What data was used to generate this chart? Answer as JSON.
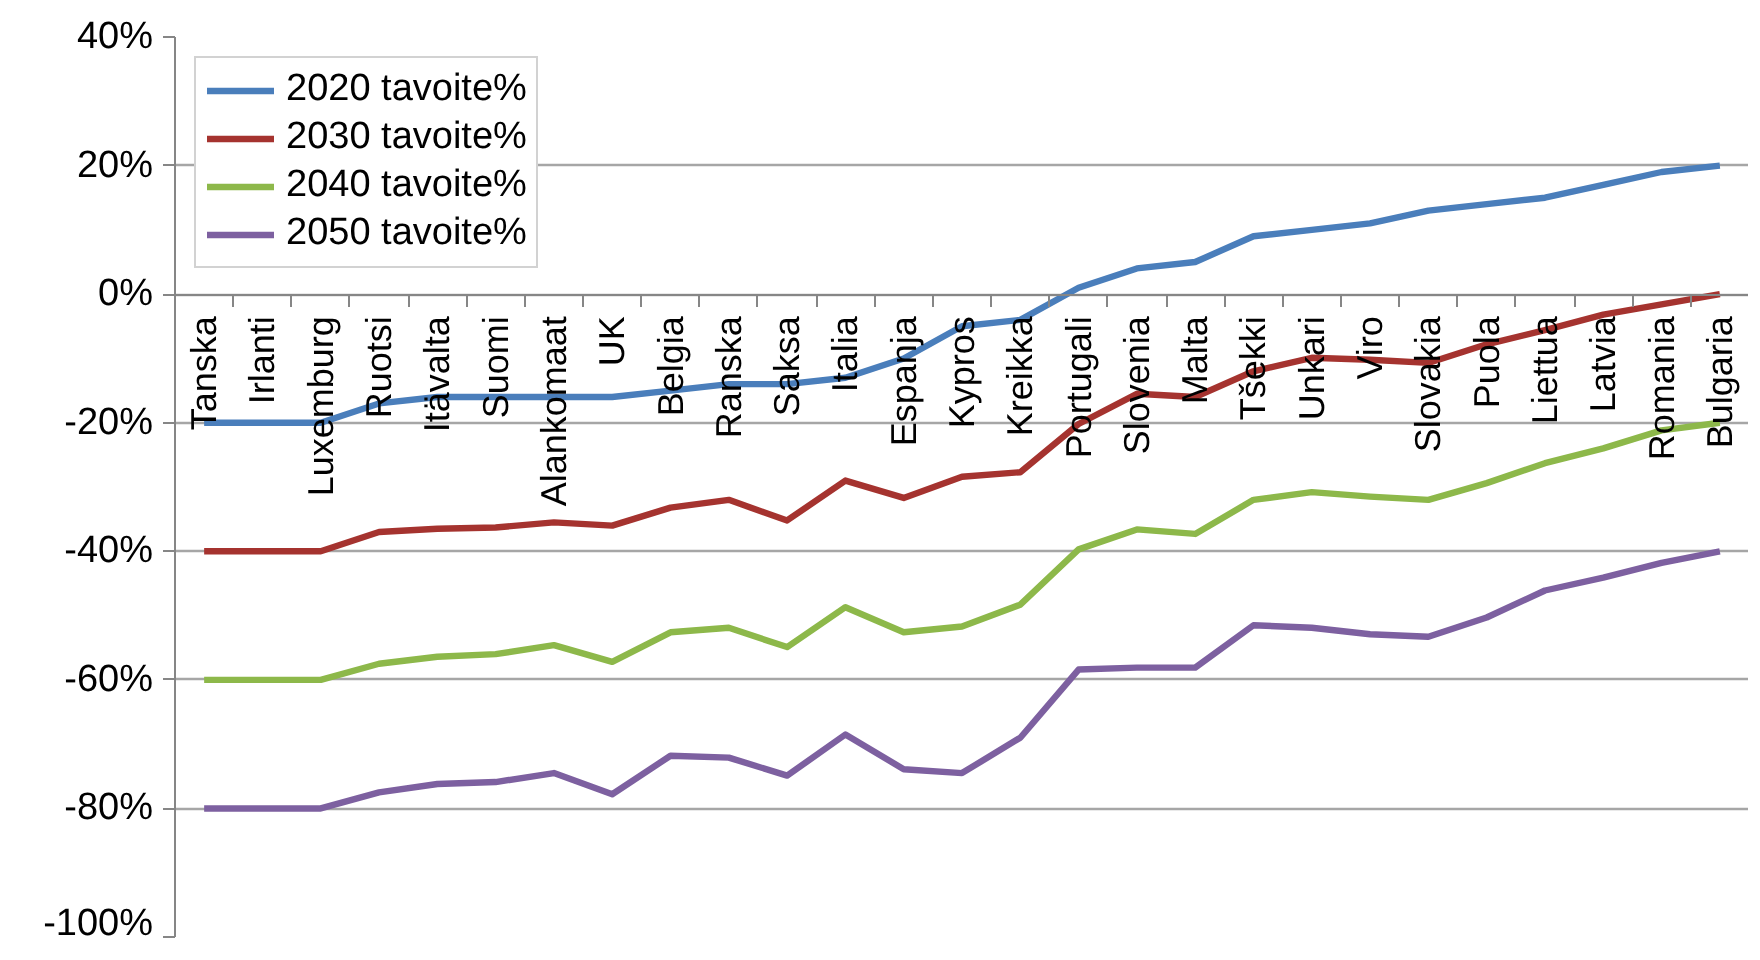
{
  "chart_data": {
    "type": "line",
    "categories": [
      "Tanska",
      "Irlanti",
      "Luxemburg",
      "Ruotsi",
      "Itävalta",
      "Suomi",
      "Alankomaat",
      "UK",
      "Belgia",
      "Ranska",
      "Saksa",
      "Italia",
      "Espanja",
      "Kypros",
      "Kreikka",
      "Portugali",
      "Slovenia",
      "Malta",
      "Tšekki",
      "Unkari",
      "Viro",
      "Slovakia",
      "Puola",
      "Liettua",
      "Latvia",
      "Romania",
      "Bulgaria"
    ],
    "series": [
      {
        "name": "2020 tavoite%",
        "color": "#4a7ebb",
        "values": [
          -20,
          -20,
          -20,
          -17,
          -16,
          -16,
          -16,
          -16,
          -15,
          -14,
          -14,
          -13,
          -10,
          -5,
          -4,
          1,
          4,
          5,
          9,
          10,
          11,
          13,
          14,
          15,
          17,
          19,
          20
        ]
      },
      {
        "name": "2030 tavoite%",
        "color": "#a5332f",
        "values": [
          -40,
          -40,
          -40,
          -37,
          -36.5,
          -36.3,
          -35.5,
          -36,
          -33.2,
          -32,
          -35.2,
          -29,
          -31.7,
          -28.4,
          -27.7,
          -20.2,
          -15.5,
          -16,
          -12,
          -9.9,
          -10.2,
          -10.7,
          -7.8,
          -5.6,
          -3.2,
          -1.6,
          0
        ]
      },
      {
        "name": "2040 tavoite%",
        "color": "#8db84a",
        "values": [
          -60,
          -60,
          -60,
          -57.5,
          -56.4,
          -56,
          -54.6,
          -57.2,
          -52.6,
          -51.9,
          -54.9,
          -48.7,
          -52.6,
          -51.7,
          -48.3,
          -39.7,
          -36.6,
          -37.3,
          -32,
          -30.8,
          -31.5,
          -32,
          -29.4,
          -26.3,
          -24,
          -21.2,
          -20
        ]
      },
      {
        "name": "2050 tavoite%",
        "color": "#7d60a0",
        "values": [
          -80,
          -80,
          -80,
          -77.5,
          -76.2,
          -75.9,
          -74.5,
          -77.8,
          -71.8,
          -72.1,
          -74.9,
          -68.5,
          -73.9,
          -74.5,
          -69,
          -58.4,
          -58.1,
          -58.1,
          -51.5,
          -51.9,
          -52.9,
          -53.3,
          -50.3,
          -46.1,
          -44.1,
          -41.8,
          -40
        ]
      }
    ],
    "ylim": [
      -100,
      40
    ],
    "yticks": [
      {
        "value": 40,
        "label": "40%"
      },
      {
        "value": 20,
        "label": "20%"
      },
      {
        "value": 0,
        "label": "0%"
      },
      {
        "value": -20,
        "label": "-20%"
      },
      {
        "value": -40,
        "label": "-40%"
      },
      {
        "value": -60,
        "label": "-60%"
      },
      {
        "value": -80,
        "label": "-80%"
      },
      {
        "value": -100,
        "label": "-100%"
      }
    ],
    "grid": "y",
    "legend": "top left",
    "marker": "none",
    "line_style": "solid"
  }
}
